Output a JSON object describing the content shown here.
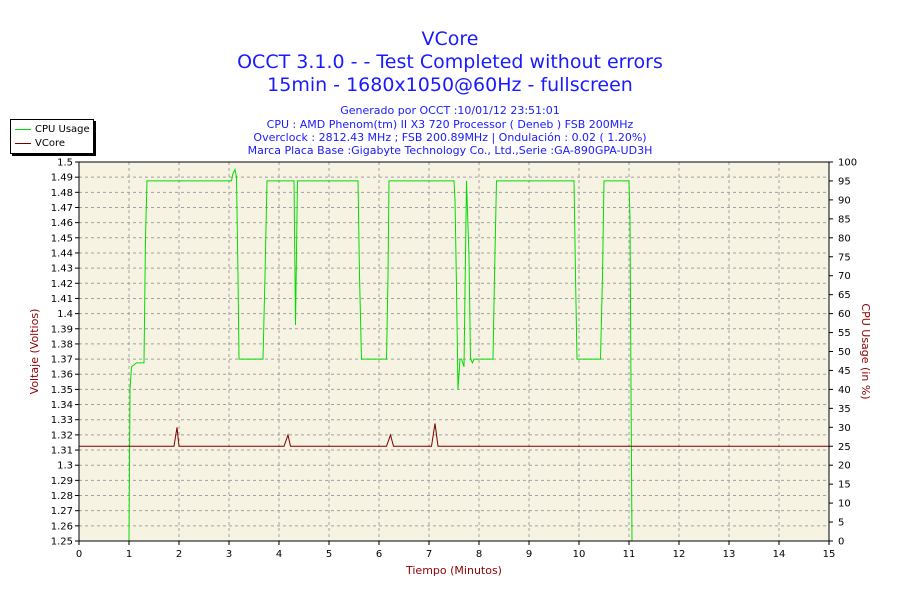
{
  "titles": {
    "line1": "VCore",
    "line2": "OCCT 3.1.0 -  - Test Completed without errors",
    "line3": "15min - 1680x1050@60Hz - fullscreen"
  },
  "info": {
    "generated": "Generado por OCCT :10/01/12 23:51:01",
    "cpu": "CPU : AMD Phenom(tm) II X3 720 Processor ( Deneb ) FSB 200MHz",
    "overclock": "Overclock : 2812.43 MHz ; FSB 200.89MHz | Ondulación : 0.02 ( 1.20%)",
    "board": "Marca Placa Base :Gigabyte Technology Co., Ltd.,Serie :GA-890GPA-UD3H"
  },
  "legend": [
    {
      "label": "CPU Usage",
      "color": "#00dd00"
    },
    {
      "label": "VCore",
      "color": "#7a0000"
    }
  ],
  "colors": {
    "title": "#1a1aff",
    "axis_label": "#8b0000",
    "plot_bg": "#f7f3e3",
    "cpu": "#00dd00",
    "vcore": "#7a0000"
  },
  "chart_data": {
    "type": "line",
    "xlabel": "Tiempo (Minutos)",
    "ylabel_left": "Voltaje (Voltios)",
    "ylabel_right": "CPU Usage (in %)",
    "xlim": [
      0,
      15
    ],
    "ylim_left": [
      1.25,
      1.5
    ],
    "ylim_right": [
      0,
      100
    ],
    "x_ticks": [
      "0",
      "1",
      "2",
      "3",
      "4",
      "5",
      "6",
      "7",
      "8",
      "9",
      "10",
      "11",
      "12",
      "13",
      "14",
      "15"
    ],
    "y_left_ticks": [
      "1.25",
      "1.26",
      "1.27",
      "1.28",
      "1.29",
      "1.3",
      "1.31",
      "1.32",
      "1.33",
      "1.34",
      "1.35",
      "1.36",
      "1.37",
      "1.38",
      "1.39",
      "1.4",
      "1.41",
      "1.42",
      "1.43",
      "1.44",
      "1.45",
      "1.46",
      "1.47",
      "1.48",
      "1.49",
      "1.5"
    ],
    "y_right_ticks": [
      "0",
      "5",
      "10",
      "15",
      "20",
      "25",
      "30",
      "35",
      "40",
      "45",
      "50",
      "55",
      "60",
      "65",
      "70",
      "75",
      "80",
      "85",
      "90",
      "95",
      "100"
    ],
    "grid": true,
    "legend_position": "top-left",
    "series": [
      {
        "name": "CPU Usage",
        "axis": "right",
        "x": [
          0.98,
          1.0,
          1.02,
          1.05,
          1.15,
          1.3,
          1.33,
          1.36,
          1.4,
          2.0,
          2.5,
          3.05,
          3.08,
          3.12,
          3.15,
          3.18,
          3.2,
          3.3,
          3.5,
          3.68,
          3.72,
          3.76,
          4.0,
          4.3,
          4.33,
          4.37,
          4.4,
          5.0,
          5.5,
          5.58,
          5.61,
          5.65,
          6.0,
          6.15,
          6.18,
          6.2,
          6.22,
          6.25,
          6.3,
          6.5,
          7.0,
          7.5,
          7.52,
          7.55,
          7.58,
          7.62,
          7.65,
          7.7,
          7.75,
          7.8,
          7.83,
          7.87,
          7.9,
          8.0,
          8.2,
          8.28,
          8.31,
          8.35,
          9.0,
          9.9,
          9.93,
          9.96,
          10.0,
          10.3,
          10.43,
          10.47,
          10.5,
          10.8,
          11.0,
          11.02,
          11.04,
          11.06
        ],
        "values": [
          0,
          0,
          40,
          46,
          47,
          47,
          80,
          95,
          95,
          95,
          95,
          95,
          97,
          98,
          96,
          70,
          48,
          48,
          48,
          48,
          70,
          95,
          95,
          95,
          57,
          95,
          95,
          95,
          95,
          95,
          70,
          48,
          48,
          48,
          70,
          95,
          95,
          95,
          95,
          95,
          95,
          95,
          90,
          67,
          40,
          48,
          48,
          46,
          95,
          75,
          48,
          47,
          48,
          48,
          48,
          48,
          70,
          95,
          95,
          95,
          70,
          48,
          48,
          48,
          48,
          70,
          95,
          95,
          95,
          85,
          40,
          0
        ]
      },
      {
        "name": "VCore",
        "axis": "left",
        "x": [
          0,
          1.9,
          1.96,
          2.0,
          2.05,
          2.1,
          4.1,
          4.18,
          4.23,
          6.15,
          6.23,
          6.29,
          7.05,
          7.12,
          7.18,
          15
        ],
        "values": [
          1.3125,
          1.3125,
          1.325,
          1.3125,
          1.3125,
          1.3125,
          1.3125,
          1.32,
          1.3125,
          1.3125,
          1.32,
          1.3125,
          1.3125,
          1.3275,
          1.3125,
          1.3125
        ]
      }
    ]
  }
}
